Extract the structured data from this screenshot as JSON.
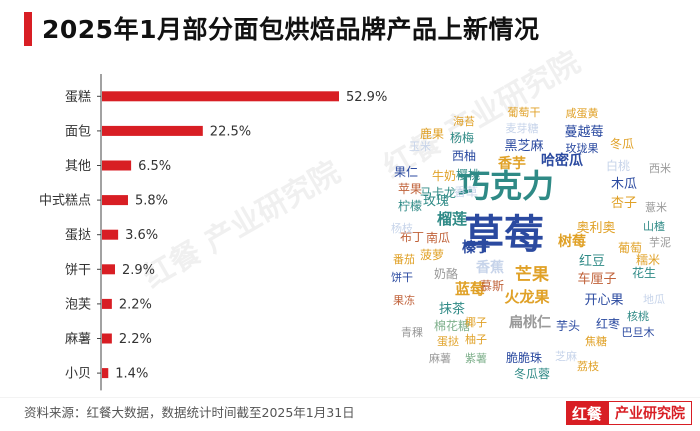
{
  "title": "2025年1月部分面包烘焙品牌产品上新情况",
  "source": "资料来源：红餐大数据，数据统计时间截至2025年1月31日",
  "brand": {
    "mark": "红餐",
    "name": "产业研究院"
  },
  "watermark": "红餐 产业研究院",
  "colors": {
    "accent": "#d81e24",
    "bar": "#d81e24",
    "axis": "#444444"
  },
  "chart_data": [
    {
      "type": "bar",
      "orientation": "horizontal",
      "categories": [
        "蛋糕",
        "面包",
        "其他",
        "中式糕点",
        "蛋挞",
        "饼干",
        "泡芙",
        "麻薯",
        "小贝"
      ],
      "values": [
        52.9,
        22.5,
        6.5,
        5.8,
        3.6,
        2.9,
        2.2,
        2.2,
        1.4
      ],
      "value_labels": [
        "52.9%",
        "22.5%",
        "6.5%",
        "5.8%",
        "3.6%",
        "2.9%",
        "2.2%",
        "2.2%",
        "1.4%"
      ],
      "xlim": [
        0,
        60
      ],
      "grid": false,
      "title": "",
      "xlabel": "",
      "ylabel": ""
    },
    {
      "type": "wordcloud",
      "words": [
        {
          "text": "草莓",
          "weight": 100,
          "color": "#2b4aa0"
        },
        {
          "text": "巧克力",
          "weight": 85,
          "color": "#2f8a86"
        },
        {
          "text": "芒果",
          "weight": 42,
          "color": "#e0a127"
        },
        {
          "text": "榴莲",
          "weight": 34,
          "color": "#2f8a86"
        },
        {
          "text": "蓝莓",
          "weight": 32,
          "color": "#e0a127"
        },
        {
          "text": "火龙果",
          "weight": 30,
          "color": "#e0a127"
        },
        {
          "text": "树莓",
          "weight": 30,
          "color": "#e0a127"
        },
        {
          "text": "奥利奥",
          "weight": 30,
          "color": "#e0a127"
        },
        {
          "text": "哈密瓜",
          "weight": 28,
          "color": "#2b4aa0"
        },
        {
          "text": "香芋",
          "weight": 27,
          "color": "#e0a127"
        },
        {
          "text": "榛子",
          "weight": 27,
          "color": "#2b4aa0"
        },
        {
          "text": "车厘子",
          "weight": 26,
          "color": "#c0623a"
        },
        {
          "text": "开心果",
          "weight": 26,
          "color": "#2b4aa0"
        },
        {
          "text": "抹茶",
          "weight": 25,
          "color": "#2f8a86"
        },
        {
          "text": "黑芝麻",
          "weight": 24,
          "color": "#2b4aa0"
        },
        {
          "text": "香蕉",
          "weight": 24,
          "color": "#c7d4ea"
        },
        {
          "text": "扁桃仁",
          "weight": 22,
          "color": "#999999"
        },
        {
          "text": "蔓越莓",
          "weight": 22,
          "color": "#2b4aa0"
        },
        {
          "text": "红豆",
          "weight": 22,
          "color": "#2f8a86"
        },
        {
          "text": "葡萄干",
          "weight": 21,
          "color": "#e0a127"
        },
        {
          "text": "紫薯",
          "weight": 21,
          "color": "#7fb08c"
        },
        {
          "text": "玉米",
          "weight": 21,
          "color": "#c7d4ea"
        },
        {
          "text": "芋头",
          "weight": 21,
          "color": "#2b4aa0"
        },
        {
          "text": "红枣",
          "weight": 21,
          "color": "#2b4aa0"
        },
        {
          "text": "棉花糖",
          "weight": 20,
          "color": "#7fb08c"
        },
        {
          "text": "玫瑰",
          "weight": 20,
          "color": "#2f8a86"
        },
        {
          "text": "花生",
          "weight": 20,
          "color": "#2f8a86"
        },
        {
          "text": "杏子",
          "weight": 20,
          "color": "#e0a127"
        },
        {
          "text": "木瓜",
          "weight": 20,
          "color": "#2b4aa0"
        },
        {
          "text": "葡萄",
          "weight": 20,
          "color": "#e0a127"
        },
        {
          "text": "咸蛋黄",
          "weight": 19,
          "color": "#e0a127"
        },
        {
          "text": "海苔",
          "weight": 19,
          "color": "#e0a127"
        },
        {
          "text": "杨梅",
          "weight": 19,
          "color": "#2f8a86"
        },
        {
          "text": "麦芽糖",
          "weight": 19,
          "color": "#c7d4ea"
        },
        {
          "text": "玫珑果",
          "weight": 19,
          "color": "#2b4aa0"
        },
        {
          "text": "鹿果",
          "weight": 19,
          "color": "#e0a127"
        },
        {
          "text": "西柚",
          "weight": 19,
          "color": "#2b4aa0"
        },
        {
          "text": "樱桃",
          "weight": 19,
          "color": "#2f8a86"
        },
        {
          "text": "牛奶",
          "weight": 19,
          "color": "#e0a127"
        },
        {
          "text": "冬瓜",
          "weight": 19,
          "color": "#e0a127"
        },
        {
          "text": "果仁",
          "weight": 18,
          "color": "#2b4aa0"
        },
        {
          "text": "马卡龙",
          "weight": 18,
          "color": "#2f8a86"
        },
        {
          "text": "白桃",
          "weight": 18,
          "color": "#c7d4ea"
        },
        {
          "text": "西米",
          "weight": 18,
          "color": "#999999"
        },
        {
          "text": "苹果",
          "weight": 18,
          "color": "#c0623a"
        },
        {
          "text": "香草",
          "weight": 18,
          "color": "#c7d4ea"
        },
        {
          "text": "柠檬",
          "weight": 18,
          "color": "#2f8a86"
        },
        {
          "text": "山楂",
          "weight": 18,
          "color": "#2f8a86"
        },
        {
          "text": "薏米",
          "weight": 18,
          "color": "#999999"
        },
        {
          "text": "芋泥",
          "weight": 18,
          "color": "#999999"
        },
        {
          "text": "布丁",
          "weight": 18,
          "color": "#c0623a"
        },
        {
          "text": "杨枝",
          "weight": 18,
          "color": "#c7d4ea"
        },
        {
          "text": "南瓜",
          "weight": 18,
          "color": "#c0623a"
        },
        {
          "text": "糯米",
          "weight": 18,
          "color": "#e0a127"
        },
        {
          "text": "番茄",
          "weight": 18,
          "color": "#e0a127"
        },
        {
          "text": "菠萝",
          "weight": 18,
          "color": "#e0a127"
        },
        {
          "text": "饼干",
          "weight": 18,
          "color": "#2b4aa0"
        },
        {
          "text": "奶酪",
          "weight": 18,
          "color": "#999999"
        },
        {
          "text": "慕斯",
          "weight": 18,
          "color": "#c0623a"
        },
        {
          "text": "地瓜",
          "weight": 18,
          "color": "#c7d4ea"
        },
        {
          "text": "果冻",
          "weight": 18,
          "color": "#c0623a"
        },
        {
          "text": "核桃",
          "weight": 18,
          "color": "#2f8a86"
        },
        {
          "text": "蛋挞",
          "weight": 18,
          "color": "#e0a127"
        },
        {
          "text": "椰子",
          "weight": 18,
          "color": "#e0a127"
        },
        {
          "text": "巴旦木",
          "weight": 18,
          "color": "#2b4aa0"
        },
        {
          "text": "青稞",
          "weight": 18,
          "color": "#999999"
        },
        {
          "text": "柚子",
          "weight": 18,
          "color": "#e0a127"
        },
        {
          "text": "麻薯",
          "weight": 18,
          "color": "#999999"
        },
        {
          "text": "焦糖",
          "weight": 18,
          "color": "#e0a127"
        },
        {
          "text": "芝麻",
          "weight": 18,
          "color": "#c7d4ea"
        },
        {
          "text": "脆脆珠",
          "weight": 18,
          "color": "#2b4aa0"
        },
        {
          "text": "荔枝",
          "weight": 18,
          "color": "#e0a127"
        },
        {
          "text": "冬瓜蓉",
          "weight": 18,
          "color": "#2f8a86"
        }
      ]
    }
  ]
}
